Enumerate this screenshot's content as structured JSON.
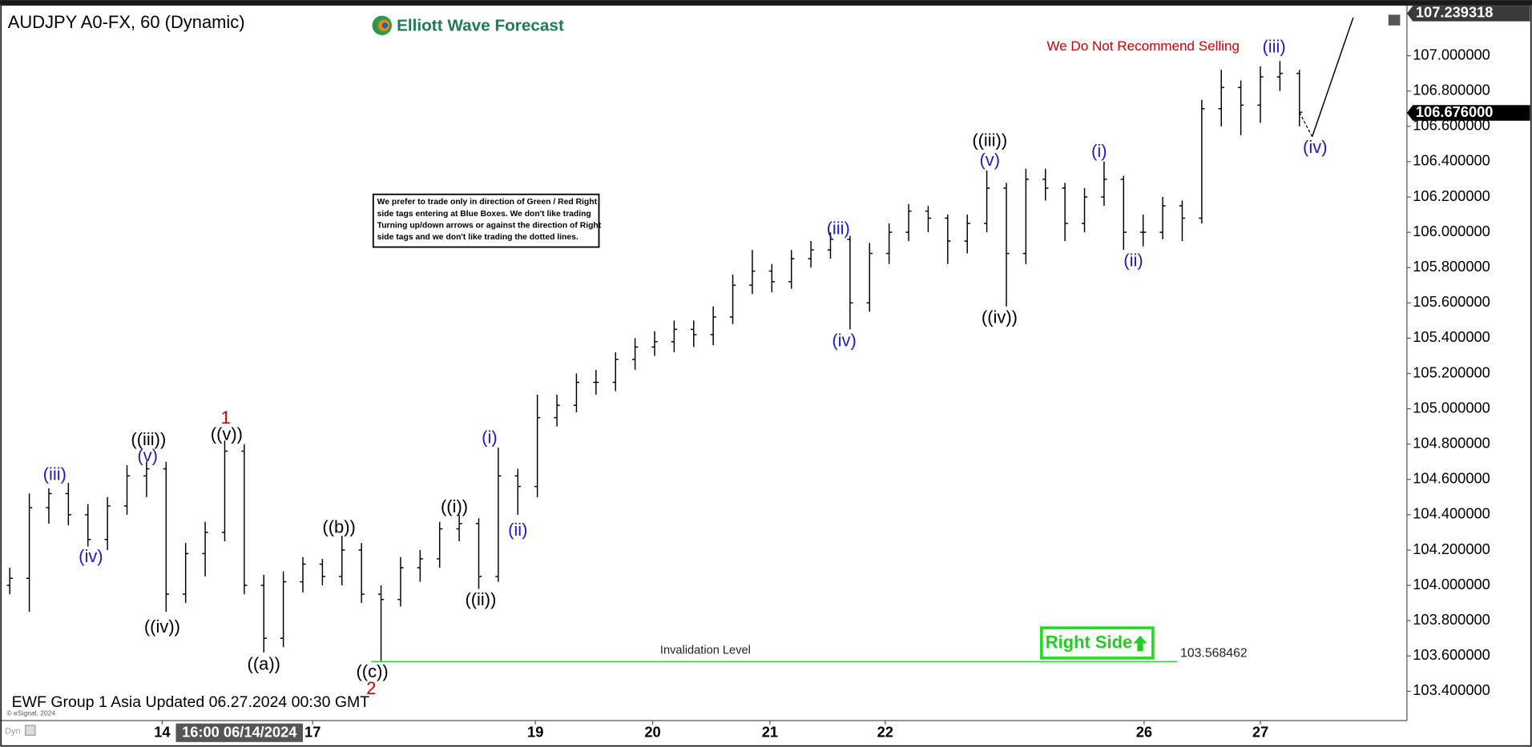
{
  "chart_data": {
    "type": "ohlc",
    "title": "AUDJPY A0-FX, 60 (Dynamic)",
    "logo": "Elliott Wave Forecast",
    "warning": "We Do Not Recommend Selling",
    "note": [
      "We prefer to trade only in direction of Green / Red Right",
      "side tags entering at Blue Boxes. We don't like trading",
      "Turning up/down arrows or against the direction of Right",
      "side tags and we don't like trading the dotted lines."
    ],
    "footer": "EWF Group 1 Asia Updated 06.27.2024 00:30 GMT",
    "copyright": "© eSignal, 2024",
    "mode": "Dyn",
    "crosshair_label": "16:00 06/14/2024",
    "right_side": "Right Side",
    "color": "#000000",
    "xlim": [
      0,
      288
    ],
    "ylim": [
      103.234,
      107.26
    ],
    "xticks": [
      {
        "value": 33.2,
        "label": "14"
      },
      {
        "value": 64,
        "label": "17"
      },
      {
        "value": 109.6,
        "label": "19"
      },
      {
        "value": 133.6,
        "label": "20"
      },
      {
        "value": 157.6,
        "label": "21"
      },
      {
        "value": 181.2,
        "label": "22"
      },
      {
        "value": 234.2,
        "label": "26"
      },
      {
        "value": 258,
        "label": "27"
      }
    ],
    "yticks": [
      {
        "value": 103.4,
        "label": "103.400000"
      },
      {
        "value": 103.6,
        "label": "103.600000"
      },
      {
        "value": 103.8,
        "label": "103.800000"
      },
      {
        "value": 104.0,
        "label": "104.000000"
      },
      {
        "value": 104.2,
        "label": "104.200000"
      },
      {
        "value": 104.4,
        "label": "104.400000"
      },
      {
        "value": 104.6,
        "label": "104.600000"
      },
      {
        "value": 104.8,
        "label": "104.800000"
      },
      {
        "value": 105.0,
        "label": "105.000000"
      },
      {
        "value": 105.2,
        "label": "105.200000"
      },
      {
        "value": 105.4,
        "label": "105.400000"
      },
      {
        "value": 105.6,
        "label": "105.600000"
      },
      {
        "value": 105.8,
        "label": "105.800000"
      },
      {
        "value": 106.0,
        "label": "106.000000"
      },
      {
        "value": 106.2,
        "label": "106.200000"
      },
      {
        "value": 106.4,
        "label": "106.400000"
      },
      {
        "value": 106.6,
        "label": "106.600000"
      },
      {
        "value": 106.8,
        "label": "106.800000"
      },
      {
        "value": 107.0,
        "label": "107.000000"
      }
    ],
    "price_tags": [
      {
        "value": 107.239318,
        "label": "107.239318",
        "color": "#3a3a3a"
      },
      {
        "value": 106.676,
        "label": "106.676000",
        "color": "#000000"
      }
    ],
    "invalidation": {
      "value": 103.568462,
      "label": "Invalidation Level",
      "color": "#3cd23c"
    },
    "x": [
      2,
      6,
      10,
      14,
      18,
      22,
      26,
      30,
      34,
      38,
      42,
      46,
      50,
      54,
      58,
      62,
      66,
      70,
      74,
      78,
      82,
      86,
      90,
      94,
      98,
      102,
      106,
      110,
      114,
      118,
      122,
      126,
      130,
      134,
      138,
      142,
      146,
      150,
      154,
      158,
      162,
      166,
      170,
      174,
      178,
      182,
      186,
      190,
      194,
      198,
      202,
      206,
      210,
      214,
      218,
      222,
      226,
      230,
      234,
      238,
      242,
      246,
      250,
      254,
      258,
      262,
      266
    ],
    "bars": [
      [
        104.0,
        104.1,
        103.95,
        104.04
      ],
      [
        104.04,
        104.52,
        103.85,
        104.44
      ],
      [
        104.44,
        104.55,
        104.35,
        104.52
      ],
      [
        104.52,
        104.58,
        104.34,
        104.4
      ],
      [
        104.4,
        104.46,
        104.22,
        104.26
      ],
      [
        104.26,
        104.5,
        104.2,
        104.45
      ],
      [
        104.45,
        104.68,
        104.4,
        104.62
      ],
      [
        104.62,
        104.7,
        104.5,
        104.66
      ],
      [
        104.66,
        104.7,
        103.85,
        103.95
      ],
      [
        103.95,
        104.24,
        103.9,
        104.18
      ],
      [
        104.18,
        104.36,
        104.05,
        104.3
      ],
      [
        104.3,
        104.82,
        104.25,
        104.76
      ],
      [
        104.76,
        104.8,
        103.95,
        104.0
      ],
      [
        104.0,
        104.06,
        103.62,
        103.7
      ],
      [
        103.7,
        104.08,
        103.65,
        104.02
      ],
      [
        104.02,
        104.16,
        103.96,
        104.12
      ],
      [
        104.12,
        104.15,
        104.0,
        104.05
      ],
      [
        104.05,
        104.28,
        104.0,
        104.2
      ],
      [
        104.2,
        104.24,
        103.9,
        103.95
      ],
      [
        103.95,
        104.0,
        103.57,
        103.92
      ],
      [
        103.92,
        104.16,
        103.88,
        104.1
      ],
      [
        104.1,
        104.2,
        104.02,
        104.15
      ],
      [
        104.15,
        104.36,
        104.1,
        104.32
      ],
      [
        104.32,
        104.4,
        104.25,
        104.35
      ],
      [
        104.35,
        104.38,
        103.98,
        104.05
      ],
      [
        104.05,
        104.78,
        104.02,
        104.62
      ],
      [
        104.62,
        104.66,
        104.4,
        104.56
      ],
      [
        104.56,
        105.08,
        104.5,
        104.95
      ],
      [
        104.95,
        105.08,
        104.9,
        105.02
      ],
      [
        105.02,
        105.2,
        104.98,
        105.15
      ],
      [
        105.15,
        105.22,
        105.08,
        105.15
      ],
      [
        105.15,
        105.32,
        105.1,
        105.28
      ],
      [
        105.28,
        105.4,
        105.22,
        105.35
      ],
      [
        105.35,
        105.44,
        105.3,
        105.38
      ],
      [
        105.38,
        105.5,
        105.32,
        105.45
      ],
      [
        105.45,
        105.5,
        105.35,
        105.42
      ],
      [
        105.42,
        105.58,
        105.36,
        105.52
      ],
      [
        105.52,
        105.76,
        105.48,
        105.7
      ],
      [
        105.7,
        105.9,
        105.65,
        105.78
      ],
      [
        105.78,
        105.82,
        105.66,
        105.72
      ],
      [
        105.72,
        105.9,
        105.68,
        105.85
      ],
      [
        105.85,
        105.95,
        105.8,
        105.9
      ],
      [
        105.9,
        106.0,
        105.85,
        105.96
      ],
      [
        105.96,
        105.98,
        105.45,
        105.6
      ],
      [
        105.6,
        105.94,
        105.55,
        105.88
      ],
      [
        105.88,
        106.05,
        105.82,
        106.0
      ],
      [
        106.0,
        106.16,
        105.95,
        106.12
      ],
      [
        106.12,
        106.15,
        106.0,
        106.08
      ],
      [
        106.08,
        106.1,
        105.82,
        105.95
      ],
      [
        105.95,
        106.1,
        105.88,
        106.05
      ],
      [
        106.05,
        106.35,
        106.0,
        106.25
      ],
      [
        106.25,
        106.28,
        105.58,
        105.88
      ],
      [
        105.88,
        106.36,
        105.82,
        106.3
      ],
      [
        106.3,
        106.36,
        106.18,
        106.25
      ],
      [
        106.25,
        106.28,
        105.95,
        106.05
      ],
      [
        106.05,
        106.25,
        106.0,
        106.2
      ],
      [
        106.2,
        106.4,
        106.15,
        106.3
      ],
      [
        106.3,
        106.32,
        105.9,
        106.0
      ],
      [
        106.0,
        106.1,
        105.92,
        106.0
      ],
      [
        106.0,
        106.2,
        105.96,
        106.15
      ],
      [
        106.15,
        106.18,
        105.95,
        106.08
      ],
      [
        106.08,
        106.75,
        106.05,
        106.7
      ],
      [
        106.7,
        106.92,
        106.6,
        106.82
      ],
      [
        106.82,
        106.86,
        106.55,
        106.72
      ],
      [
        106.72,
        106.94,
        106.62,
        106.88
      ],
      [
        106.88,
        106.97,
        106.8,
        106.9
      ],
      [
        106.9,
        106.92,
        106.6,
        106.68
      ]
    ],
    "annotations": [
      {
        "text": "(iii)",
        "color": "#1c1cc4"
      },
      {
        "text": "(iv)",
        "color": "#1c1cc4"
      },
      {
        "text": "((iii))",
        "color": "#000000"
      },
      {
        "text": "(v)",
        "color": "#1c1cc4"
      },
      {
        "text": "((iv))",
        "color": "#000000"
      },
      {
        "text": "1",
        "color": "#cc0000"
      },
      {
        "text": "((v))",
        "color": "#000000"
      },
      {
        "text": "((a))",
        "color": "#000000"
      },
      {
        "text": "((b))",
        "color": "#000000"
      },
      {
        "text": "((c))",
        "color": "#000000"
      },
      {
        "text": "2",
        "color": "#cc0000"
      },
      {
        "text": "((i))",
        "color": "#000000"
      },
      {
        "text": "((ii))",
        "color": "#000000"
      },
      {
        "text": "(i)",
        "color": "#1c1cc4"
      },
      {
        "text": "(ii)",
        "color": "#1c1cc4"
      },
      {
        "text": "(iii)",
        "color": "#1c1cc4"
      },
      {
        "text": "(iv)",
        "color": "#1c1cc4"
      },
      {
        "text": "((iii))",
        "color": "#000000"
      },
      {
        "text": "(v)",
        "color": "#1c1cc4"
      },
      {
        "text": "((iv))",
        "color": "#000000"
      },
      {
        "text": "(i)",
        "color": "#1c1cc4"
      },
      {
        "text": "(ii)",
        "color": "#1c1cc4"
      },
      {
        "text": "(iii)",
        "color": "#1c1cc4"
      },
      {
        "text": "(iv)",
        "color": "#1c1cc4"
      }
    ]
  }
}
